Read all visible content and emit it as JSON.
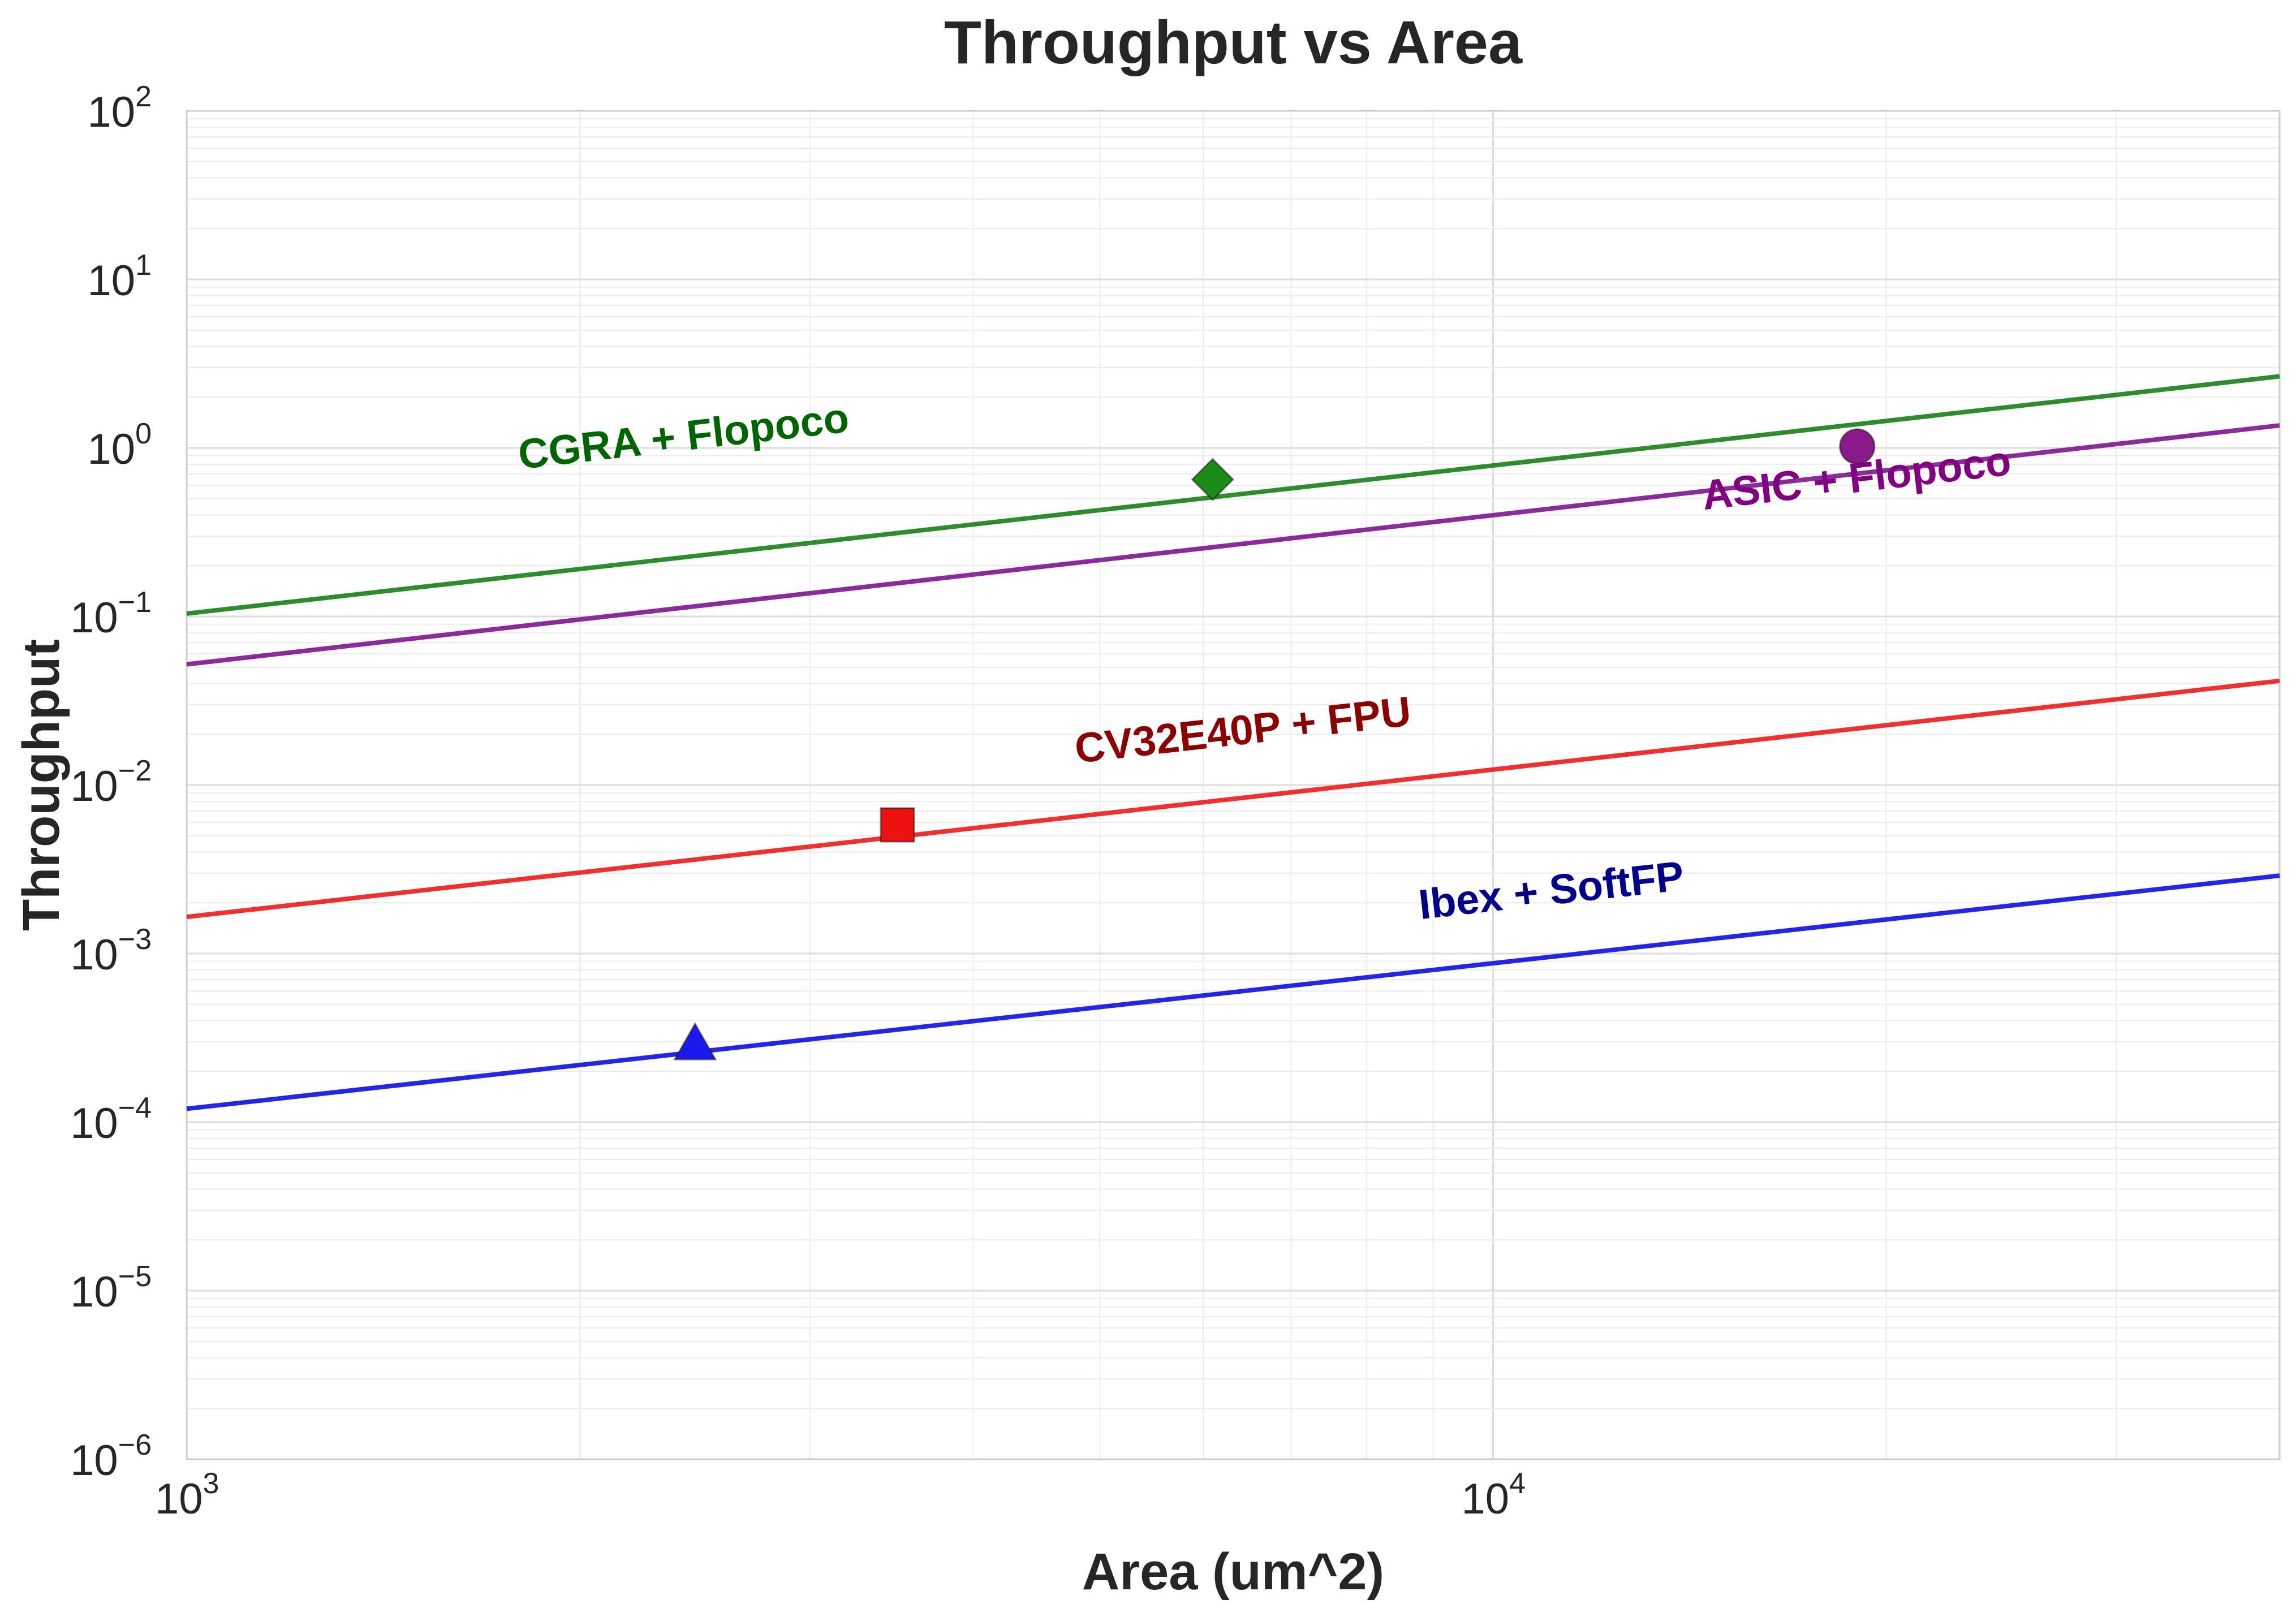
{
  "chart_data": {
    "type": "line",
    "title": "Throughput vs Area",
    "xlabel": "Area (um^2)",
    "ylabel": "Throughput",
    "xscale": "log",
    "yscale": "log",
    "xlim": [
      1000,
      40000
    ],
    "ylim": [
      1e-06,
      100
    ],
    "grid": true,
    "x_ticks": [
      {
        "base": "10",
        "exp": "3",
        "value": 1000
      },
      {
        "base": "10",
        "exp": "4",
        "value": 10000
      }
    ],
    "y_ticks": [
      {
        "base": "10",
        "exp": "2",
        "value": 100
      },
      {
        "base": "10",
        "exp": "1",
        "value": 10
      },
      {
        "base": "10",
        "exp": "0",
        "value": 1
      },
      {
        "base": "10",
        "exp": "−1",
        "value": 0.1
      },
      {
        "base": "10",
        "exp": "−2",
        "value": 0.01
      },
      {
        "base": "10",
        "exp": "−3",
        "value": 0.001
      },
      {
        "base": "10",
        "exp": "−4",
        "value": 0.0001
      },
      {
        "base": "10",
        "exp": "−5",
        "value": 1e-05
      },
      {
        "base": "10",
        "exp": "−6",
        "value": 1e-06
      }
    ],
    "series": [
      {
        "name": "CGRA + Flopoco",
        "color": "#2e8b2e",
        "label_color": "#006400",
        "marker": "diamond",
        "marker_color": "#1a8c1a",
        "line": [
          [
            1000,
            0.104
          ],
          [
            40000,
            2.66
          ]
        ],
        "point": [
          6100,
          0.65
        ],
        "label_anchor": [
          1800,
          0.75
        ]
      },
      {
        "name": "ASIC + Flopoco",
        "color": "#8b2a9a",
        "label_color": "#800080",
        "marker": "circle",
        "marker_color": "#8a1a8a",
        "line": [
          [
            1000,
            0.052
          ],
          [
            40000,
            1.36
          ]
        ],
        "point": [
          19000,
          1.02
        ],
        "label_anchor": [
          14500,
          0.43
        ]
      },
      {
        "name": "CV32E40P + FPU",
        "color": "#f03030",
        "label_color": "#8b0000",
        "marker": "square",
        "marker_color": "#ee1111",
        "line": [
          [
            1000,
            0.00165
          ],
          [
            40000,
            0.0415
          ]
        ],
        "point": [
          3500,
          0.0058
        ],
        "label_anchor": [
          4800,
          0.0135
        ]
      },
      {
        "name": "Ibex + SoftFP",
        "color": "#2525e8",
        "label_color": "#00008b",
        "marker": "triangle",
        "marker_color": "#1a1aee",
        "line": [
          [
            1000,
            0.00012
          ],
          [
            40000,
            0.0029
          ]
        ],
        "point": [
          2450,
          0.00029
        ],
        "label_anchor": [
          8800,
          0.0016
        ]
      }
    ]
  }
}
